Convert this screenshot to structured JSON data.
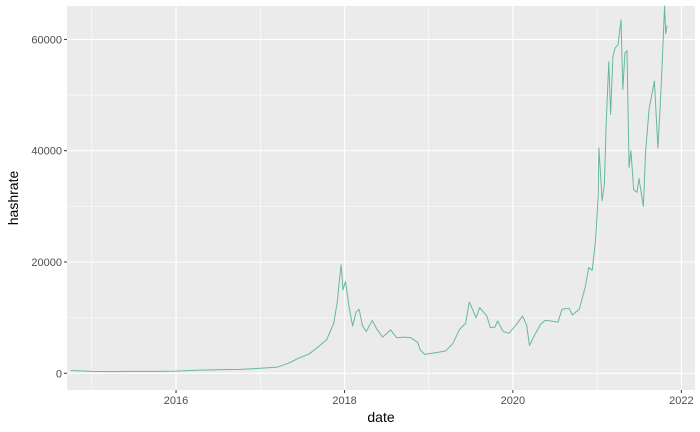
{
  "chart_data": {
    "type": "line",
    "xlabel": "date",
    "ylabel": "hashrate",
    "xlim": [
      "2014-09-15",
      "2022-03-01"
    ],
    "ylim": [
      -3000,
      66000
    ],
    "x_ticks": [
      {
        "date": "2016-01-01",
        "label": "2016"
      },
      {
        "date": "2018-01-01",
        "label": "2018"
      },
      {
        "date": "2020-01-01",
        "label": "2020"
      },
      {
        "date": "2022-01-01",
        "label": "2022"
      }
    ],
    "y_ticks": [
      {
        "value": 0,
        "label": "0"
      },
      {
        "value": 20000,
        "label": "20000"
      },
      {
        "value": 40000,
        "label": "40000"
      },
      {
        "value": 60000,
        "label": "60000"
      }
    ],
    "grid": true,
    "colors": {
      "panel": "#ebebeb",
      "grid_major": "#ffffff",
      "line": "#66b8a0"
    },
    "series": [
      {
        "points": [
          [
            "2014-10-01",
            500
          ],
          [
            "2015-01-01",
            350
          ],
          [
            "2015-04-01",
            300
          ],
          [
            "2015-07-01",
            350
          ],
          [
            "2015-10-01",
            350
          ],
          [
            "2016-01-01",
            400
          ],
          [
            "2016-04-01",
            550
          ],
          [
            "2016-07-01",
            650
          ],
          [
            "2016-10-01",
            700
          ],
          [
            "2017-01-01",
            900
          ],
          [
            "2017-03-15",
            1100
          ],
          [
            "2017-05-01",
            1800
          ],
          [
            "2017-06-15",
            2700
          ],
          [
            "2017-08-01",
            3500
          ],
          [
            "2017-09-01",
            4500
          ],
          [
            "2017-10-15",
            6000
          ],
          [
            "2017-11-15",
            9000
          ],
          [
            "2017-12-01",
            13000
          ],
          [
            "2017-12-10",
            17000
          ],
          [
            "2017-12-17",
            19500
          ],
          [
            "2017-12-25",
            15000
          ],
          [
            "2018-01-05",
            16500
          ],
          [
            "2018-01-20",
            12000
          ],
          [
            "2018-02-05",
            8500
          ],
          [
            "2018-02-20",
            11000
          ],
          [
            "2018-03-05",
            11500
          ],
          [
            "2018-03-20",
            8500
          ],
          [
            "2018-04-05",
            7500
          ],
          [
            "2018-05-01",
            9500
          ],
          [
            "2018-05-20",
            8000
          ],
          [
            "2018-06-15",
            6500
          ],
          [
            "2018-07-20",
            7800
          ],
          [
            "2018-08-15",
            6400
          ],
          [
            "2018-09-15",
            6500
          ],
          [
            "2018-10-15",
            6400
          ],
          [
            "2018-11-15",
            5500
          ],
          [
            "2018-11-25",
            4200
          ],
          [
            "2018-12-15",
            3400
          ],
          [
            "2019-01-15",
            3600
          ],
          [
            "2019-02-15",
            3800
          ],
          [
            "2019-03-15",
            4000
          ],
          [
            "2019-04-15",
            5300
          ],
          [
            "2019-05-15",
            7900
          ],
          [
            "2019-06-10",
            9000
          ],
          [
            "2019-06-26",
            12800
          ],
          [
            "2019-07-10",
            11500
          ],
          [
            "2019-07-25",
            10000
          ],
          [
            "2019-08-10",
            11800
          ],
          [
            "2019-09-10",
            10300
          ],
          [
            "2019-09-25",
            8200
          ],
          [
            "2019-10-15",
            8300
          ],
          [
            "2019-10-27",
            9400
          ],
          [
            "2019-11-20",
            7500
          ],
          [
            "2019-12-15",
            7200
          ],
          [
            "2020-01-15",
            8700
          ],
          [
            "2020-02-12",
            10300
          ],
          [
            "2020-03-01",
            8600
          ],
          [
            "2020-03-13",
            5000
          ],
          [
            "2020-04-01",
            6600
          ],
          [
            "2020-04-30",
            8800
          ],
          [
            "2020-05-20",
            9500
          ],
          [
            "2020-06-15",
            9400
          ],
          [
            "2020-07-15",
            9200
          ],
          [
            "2020-08-01",
            11500
          ],
          [
            "2020-09-01",
            11700
          ],
          [
            "2020-09-15",
            10500
          ],
          [
            "2020-10-15",
            11500
          ],
          [
            "2020-11-10",
            15500
          ],
          [
            "2020-11-25",
            19000
          ],
          [
            "2020-12-10",
            18500
          ],
          [
            "2020-12-25",
            24000
          ],
          [
            "2021-01-05",
            32000
          ],
          [
            "2021-01-08",
            40500
          ],
          [
            "2021-01-15",
            36000
          ],
          [
            "2021-01-22",
            31000
          ],
          [
            "2021-02-01",
            34000
          ],
          [
            "2021-02-08",
            44000
          ],
          [
            "2021-02-20",
            56000
          ],
          [
            "2021-02-28",
            46500
          ],
          [
            "2021-03-10",
            57000
          ],
          [
            "2021-03-20",
            58500
          ],
          [
            "2021-04-01",
            59000
          ],
          [
            "2021-04-14",
            63500
          ],
          [
            "2021-04-22",
            51000
          ],
          [
            "2021-05-01",
            57500
          ],
          [
            "2021-05-10",
            58000
          ],
          [
            "2021-05-19",
            37000
          ],
          [
            "2021-05-27",
            40000
          ],
          [
            "2021-06-08",
            33000
          ],
          [
            "2021-06-22",
            32500
          ],
          [
            "2021-07-01",
            35000
          ],
          [
            "2021-07-20",
            30000
          ],
          [
            "2021-07-30",
            40000
          ],
          [
            "2021-08-14",
            47500
          ],
          [
            "2021-08-23",
            49500
          ],
          [
            "2021-09-06",
            52500
          ],
          [
            "2021-09-21",
            40500
          ],
          [
            "2021-10-01",
            48000
          ],
          [
            "2021-10-10",
            56000
          ],
          [
            "2021-10-20",
            66000
          ],
          [
            "2021-10-25",
            61000
          ],
          [
            "2021-10-31",
            62500
          ]
        ]
      }
    ]
  }
}
